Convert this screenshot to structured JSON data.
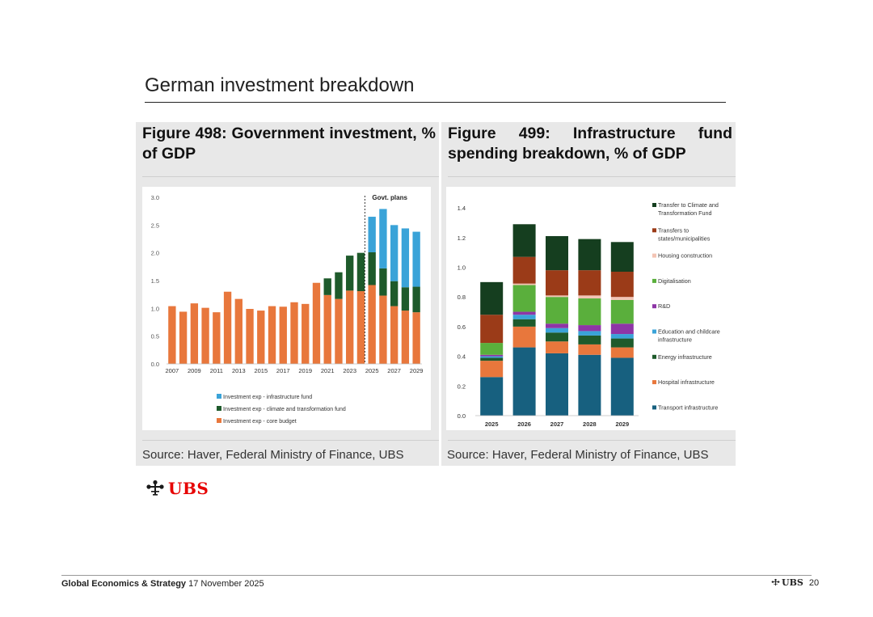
{
  "page": {
    "title": "German investment breakdown",
    "footer": {
      "section": "Global Economics & Strategy",
      "date": "17 November 2025",
      "brand": "UBS",
      "page_number": "20"
    },
    "logo_text": "UBS"
  },
  "figures": [
    {
      "title": "Figure 498: Government investment, % of GDP",
      "source": "Source: Haver, Federal Ministry of Finance, UBS"
    },
    {
      "title": "Figure 499: Infrastructure fund spending breakdown, % of GDP",
      "source": "Source: Haver, Federal Ministry of Finance, UBS"
    }
  ],
  "colors": {
    "core": "#e8773c",
    "climate": "#1e5a2b",
    "infra": "#3aa3d8",
    "transport": "#17607f",
    "hospital": "#e8773c",
    "energy": "#1e5a2b",
    "education": "#3aa3d8",
    "rnd": "#8e35a6",
    "digital": "#5aaf3c",
    "housing": "#f3c4b4",
    "states": "#9b3b18",
    "climate_fund": "#153e1f"
  },
  "chart_data": [
    {
      "type": "bar",
      "stacked": true,
      "annotation": "Govt. plans",
      "years": [
        "2007",
        "2008",
        "2009",
        "2010",
        "2011",
        "2012",
        "2013",
        "2014",
        "2015",
        "2016",
        "2017",
        "2018",
        "2019",
        "2020",
        "2021",
        "2022",
        "2023",
        "2024",
        "2025",
        "2026",
        "2027",
        "2028",
        "2029"
      ],
      "tick_labels": [
        "2007",
        "2009",
        "2011",
        "2013",
        "2015",
        "2017",
        "2019",
        "2021",
        "2023",
        "2025",
        "2027",
        "2029"
      ],
      "y_ticks": [
        "0.0",
        "0.5",
        "1.0",
        "1.5",
        "2.0",
        "2.5",
        "3.0"
      ],
      "ylim": [
        0,
        3
      ],
      "series": [
        {
          "name": "Investment exp - core budget",
          "color_key": "core",
          "values": [
            1.04,
            0.94,
            1.09,
            1.01,
            0.93,
            1.3,
            1.17,
            0.99,
            0.96,
            1.04,
            1.03,
            1.11,
            1.08,
            1.46,
            1.24,
            1.17,
            1.32,
            1.31,
            1.42,
            1.23,
            1.04,
            0.96,
            0.93
          ]
        },
        {
          "name": "Investment exp - climate and transformation fund",
          "color_key": "climate",
          "values": [
            0,
            0,
            0,
            0,
            0,
            0,
            0,
            0,
            0,
            0,
            0,
            0,
            0,
            0,
            0.3,
            0.48,
            0.63,
            0.69,
            0.59,
            0.49,
            0.45,
            0.42,
            0.46
          ]
        },
        {
          "name": "Investment exp - infrastructure fund",
          "color_key": "infra",
          "values": [
            0,
            0,
            0,
            0,
            0,
            0,
            0,
            0,
            0,
            0,
            0,
            0,
            0,
            0,
            0,
            0,
            0,
            0,
            0.64,
            1.07,
            1.01,
            1.06,
            0.99
          ]
        }
      ],
      "legend": [
        {
          "name": "Investment exp - infrastructure fund",
          "color_key": "infra"
        },
        {
          "name": "Investment exp - climate and transformation fund",
          "color_key": "climate"
        },
        {
          "name": "Investment exp - core budget",
          "color_key": "core"
        }
      ]
    },
    {
      "type": "bar",
      "stacked": true,
      "categories": [
        "2025",
        "2026",
        "2027",
        "2028",
        "2029"
      ],
      "y_ticks": [
        "0.0",
        "0.2",
        "0.4",
        "0.6",
        "0.8",
        "1.0",
        "1.2",
        "1.4"
      ],
      "ylim": [
        0,
        1.5
      ],
      "series": [
        {
          "name": "Transport infrastructure",
          "color_key": "transport",
          "values": [
            0.26,
            0.46,
            0.42,
            0.41,
            0.39
          ]
        },
        {
          "name": "Hospital infrastructure",
          "color_key": "hospital",
          "values": [
            0.11,
            0.14,
            0.08,
            0.07,
            0.07
          ]
        },
        {
          "name": "Energy infrastructure",
          "color_key": "energy",
          "values": [
            0.02,
            0.05,
            0.06,
            0.06,
            0.06
          ]
        },
        {
          "name": "Education and childcare infrastructure",
          "color_key": "education",
          "values": [
            0.01,
            0.03,
            0.03,
            0.03,
            0.03
          ]
        },
        {
          "name": "R&D",
          "color_key": "rnd",
          "values": [
            0.01,
            0.02,
            0.03,
            0.04,
            0.07
          ]
        },
        {
          "name": "Digitalisation",
          "color_key": "digital",
          "values": [
            0.08,
            0.18,
            0.18,
            0.18,
            0.16
          ]
        },
        {
          "name": "Housing construction",
          "color_key": "housing",
          "values": [
            0,
            0.01,
            0.01,
            0.02,
            0.02
          ]
        },
        {
          "name": "Transfers to states/municipalities",
          "color_key": "states",
          "values": [
            0.19,
            0.18,
            0.17,
            0.17,
            0.17
          ]
        },
        {
          "name": "Transfer to Climate and Transformation Fund",
          "color_key": "climate_fund",
          "values": [
            0.22,
            0.22,
            0.23,
            0.21,
            0.2
          ]
        }
      ],
      "legend": [
        {
          "name": "Transfer to Climate and Transformation Fund",
          "color_key": "climate_fund"
        },
        {
          "name": "Transfers to states/municipalities",
          "color_key": "states"
        },
        {
          "name": "Housing construction",
          "color_key": "housing"
        },
        {
          "name": "Digitalisation",
          "color_key": "digital"
        },
        {
          "name": "R&D",
          "color_key": "rnd"
        },
        {
          "name": "Education and childcare infrastructure",
          "color_key": "education"
        },
        {
          "name": "Energy infrastructure",
          "color_key": "energy"
        },
        {
          "name": "Hospital infrastructure",
          "color_key": "hospital"
        },
        {
          "name": "Transport infrastructure",
          "color_key": "transport"
        }
      ]
    }
  ]
}
